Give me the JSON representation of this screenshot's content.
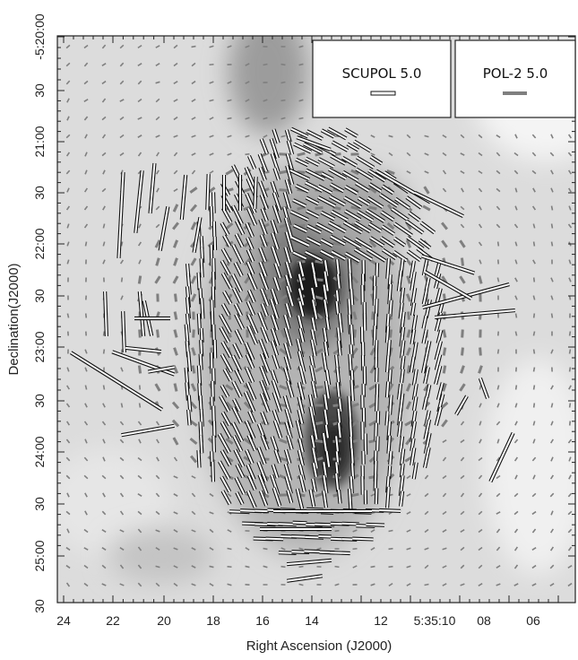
{
  "chart_data": {
    "type": "scatter",
    "title": "",
    "xlabel": "Right Ascension (J2000)",
    "ylabel": "Declination(J2000)",
    "x_tick_labels": [
      "24",
      "22",
      "20",
      "18",
      "16",
      "14",
      "12",
      "5:35:10",
      "08",
      "06"
    ],
    "y_tick_labels": [
      "-5:20:00",
      "30",
      "21:00",
      "30",
      "22:00",
      "30",
      "23:00",
      "30",
      "24:00",
      "30",
      "25:00",
      "30"
    ],
    "legend_placement": "top-right",
    "series": [
      {
        "name": "SCUPOL 5.0",
        "color": "#ffffff",
        "outline": "#111111"
      },
      {
        "name": "POL-2 5.0",
        "color": "#7f7f7f"
      }
    ],
    "background": "grayscale dust emission intensity map with bright peak near 5:35:14, -5:22:30"
  }
}
